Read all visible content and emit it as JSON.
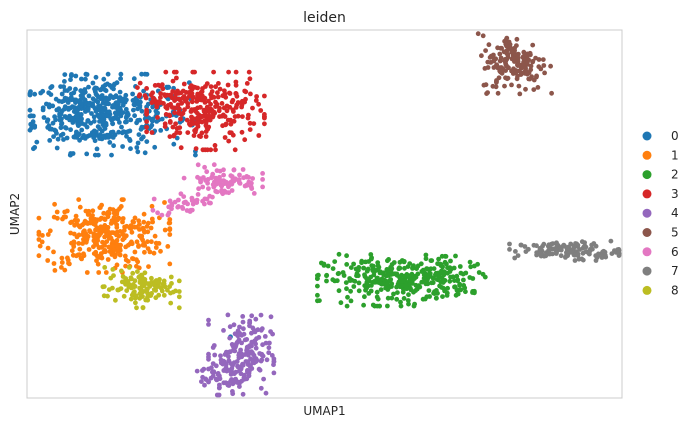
{
  "chart_data": {
    "type": "scatter",
    "title": "leiden",
    "xlabel": "UMAP1",
    "ylabel": "UMAP2",
    "grid": false,
    "legend_position": "right",
    "xlim": [
      0,
      100
    ],
    "ylim": [
      0,
      100
    ],
    "approximate": true,
    "series": [
      {
        "name": "0",
        "color": "#1f77b4",
        "clusters": [
          {
            "x": 14,
            "y": 77,
            "sx": 6.5,
            "sy": 5.0,
            "n": 360
          },
          {
            "x": 9,
            "y": 78,
            "sx": 3.5,
            "sy": 4.5,
            "n": 120
          },
          {
            "x": 34,
            "y": 17,
            "sx": 0.2,
            "sy": 0.2,
            "n": 1
          }
        ]
      },
      {
        "name": "1",
        "color": "#ff7f0e",
        "clusters": [
          {
            "x": 13,
            "y": 44,
            "sx": 5.0,
            "sy": 4.5,
            "n": 320
          }
        ]
      },
      {
        "name": "2",
        "color": "#2ca02c",
        "clusters": [
          {
            "x": 62,
            "y": 32,
            "sx": 6.0,
            "sy": 3.2,
            "n": 300
          },
          {
            "x": 71,
            "y": 33,
            "sx": 3.0,
            "sy": 2.5,
            "n": 60
          }
        ]
      },
      {
        "name": "3",
        "color": "#d62728",
        "clusters": [
          {
            "x": 30,
            "y": 78,
            "sx": 4.5,
            "sy": 4.8,
            "n": 260
          },
          {
            "x": 23,
            "y": 82,
            "sx": 2.5,
            "sy": 2.0,
            "n": 50
          }
        ]
      },
      {
        "name": "4",
        "color": "#9467bd",
        "clusters": [
          {
            "x": 36,
            "y": 12,
            "sx": 2.5,
            "sy": 5.0,
            "n": 170
          },
          {
            "x": 33,
            "y": 6,
            "sx": 2.0,
            "sy": 2.5,
            "n": 50
          }
        ]
      },
      {
        "name": "5",
        "color": "#8c564b",
        "clusters": [
          {
            "x": 82,
            "y": 91,
            "sx": 2.8,
            "sy": 3.8,
            "n": 160
          }
        ]
      },
      {
        "name": "6",
        "color": "#e377c2",
        "clusters": [
          {
            "x": 33,
            "y": 59,
            "sx": 3.0,
            "sy": 2.0,
            "n": 90
          },
          {
            "x": 26,
            "y": 53,
            "sx": 2.2,
            "sy": 1.5,
            "n": 40
          }
        ]
      },
      {
        "name": "7",
        "color": "#7f7f7f",
        "clusters": [
          {
            "x": 91,
            "y": 40,
            "sx": 4.5,
            "sy": 1.2,
            "n": 130
          }
        ]
      },
      {
        "name": "8",
        "color": "#bcbd22",
        "clusters": [
          {
            "x": 19,
            "y": 30,
            "sx": 3.0,
            "sy": 2.5,
            "n": 120
          }
        ]
      }
    ]
  }
}
